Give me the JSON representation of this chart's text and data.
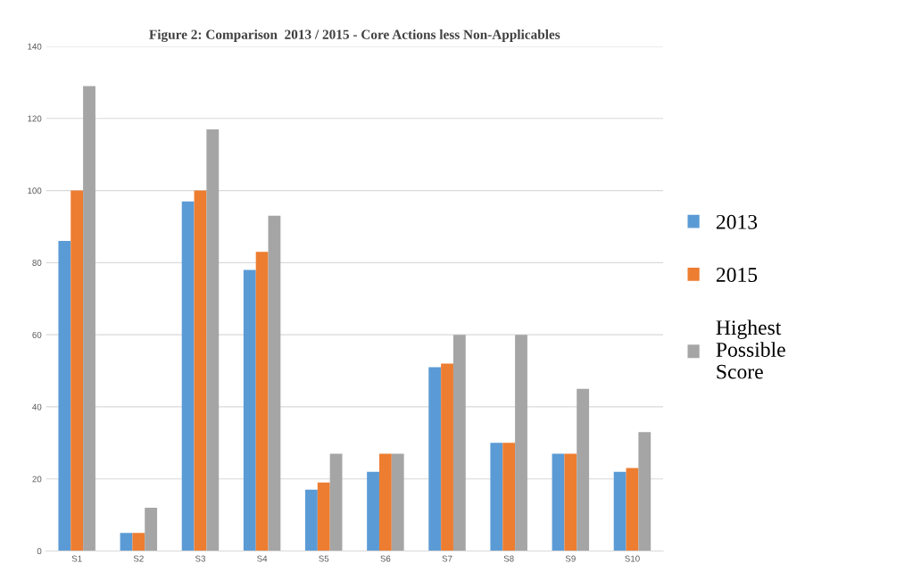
{
  "chart_data": {
    "type": "bar",
    "title": "Figure 2: Comparison  2013 / 2015 - Core Actions less Non-Applicables",
    "categories": [
      "S1",
      "S2",
      "S3",
      "S4",
      "S5",
      "S6",
      "S7",
      "S8",
      "S9",
      "S10"
    ],
    "series": [
      {
        "name": "2013",
        "color": "#5b9bd5",
        "values": [
          86,
          5,
          97,
          78,
          17,
          22,
          51,
          30,
          27,
          22
        ]
      },
      {
        "name": "2015",
        "color": "#ed7d31",
        "values": [
          100,
          5,
          100,
          83,
          19,
          27,
          52,
          30,
          27,
          23
        ]
      },
      {
        "name": "Highest\nPossible\nScore",
        "color": "#a5a5a5",
        "values": [
          129,
          12,
          117,
          93,
          27,
          27,
          60,
          60,
          45,
          33
        ]
      }
    ],
    "ylim": [
      0,
      140
    ],
    "yticks": [
      0,
      20,
      40,
      60,
      80,
      100,
      120,
      140
    ],
    "grid": "y",
    "legend": "right"
  }
}
